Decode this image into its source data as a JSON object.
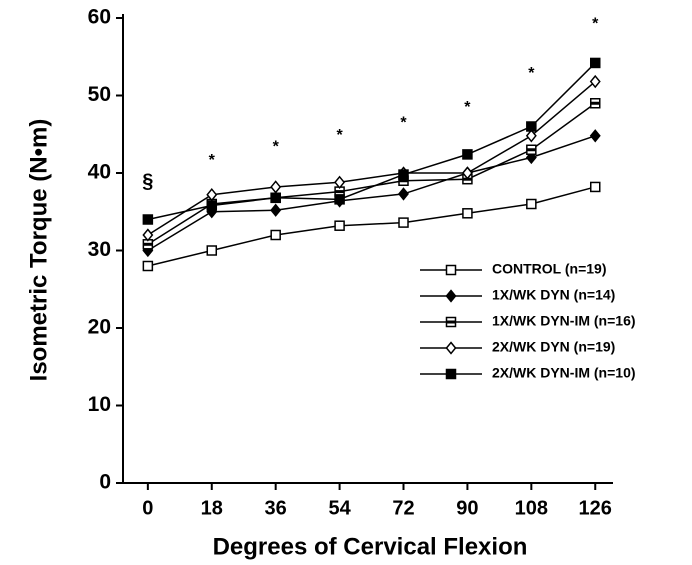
{
  "chart_data": {
    "type": "line",
    "xlabel": "Degrees of Cervical Flexion",
    "ylabel": "Isometric Torque (N•m)",
    "x": [
      0,
      18,
      36,
      54,
      72,
      90,
      108,
      126
    ],
    "xlim": [
      -7,
      131
    ],
    "xticks": [
      0,
      18,
      36,
      54,
      72,
      90,
      108,
      126
    ],
    "ylim": [
      0,
      60
    ],
    "yticks": [
      0,
      10,
      20,
      30,
      40,
      50,
      60
    ],
    "series": [
      {
        "name": "CONTROL (n=19)",
        "color": "#000000",
        "marker": "square-open",
        "values": [
          28,
          30,
          32,
          33.2,
          33.6,
          34.8,
          36,
          38.2
        ]
      },
      {
        "name": "1X/WK DYN (n=14)",
        "color": "#000000",
        "marker": "diamond-filled",
        "values": [
          30,
          35,
          35.2,
          36.4,
          37.3,
          40,
          42,
          44.8
        ]
      },
      {
        "name": "1X/WK DYN-IM (n=16)",
        "color": "#000000",
        "marker": "square-dot",
        "values": [
          30.8,
          36,
          36.8,
          37.6,
          39,
          39.2,
          43,
          49
        ]
      },
      {
        "name": "2X/WK DYN (n=19)",
        "color": "#000000",
        "marker": "diamond-open",
        "values": [
          32,
          37.2,
          38.2,
          38.8,
          40,
          40,
          44.8,
          51.8
        ]
      },
      {
        "name": "2X/WK DYN-IM (n=10)",
        "color": "#000000",
        "marker": "square-filled",
        "values": [
          34,
          35.8,
          36.8,
          36.6,
          39.8,
          42.4,
          46,
          54.2
        ]
      }
    ],
    "annotations": [
      {
        "text": "§",
        "x": 0,
        "y": 38.8
      },
      {
        "text": "*",
        "x": 18,
        "y": 41.6
      },
      {
        "text": "*",
        "x": 36,
        "y": 43.3
      },
      {
        "text": "*",
        "x": 54,
        "y": 44.8
      },
      {
        "text": "*",
        "x": 72,
        "y": 46.4
      },
      {
        "text": "*",
        "x": 90,
        "y": 48.4
      },
      {
        "text": "*",
        "x": 108,
        "y": 52.8
      },
      {
        "text": "*",
        "x": 126,
        "y": 59.2
      }
    ]
  }
}
